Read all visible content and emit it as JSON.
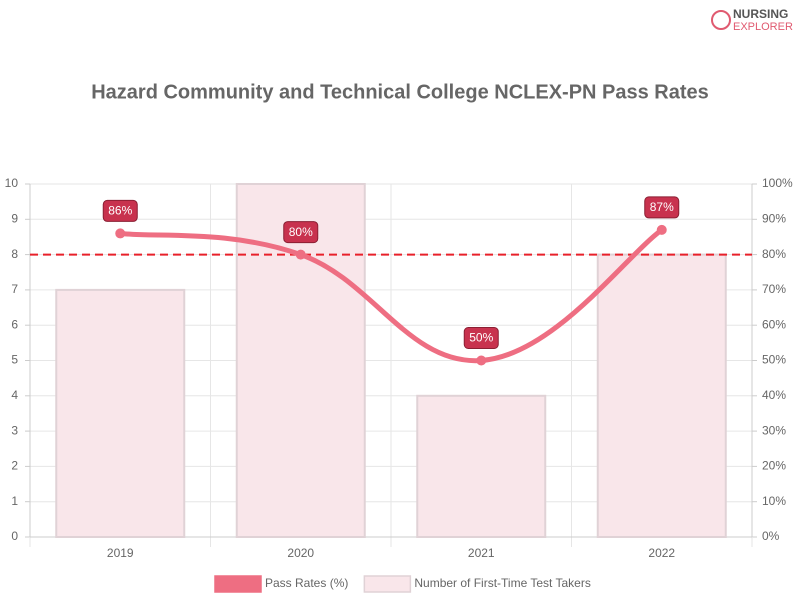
{
  "chart_data": {
    "type": "combo",
    "title": "Hazard Community and Technical College NCLEX-PN Pass Rates",
    "logo": [
      "NURSING",
      "EXPLORER"
    ],
    "categories": [
      "2019",
      "2020",
      "2021",
      "2022"
    ],
    "series": [
      {
        "name": "Pass Rates (%)",
        "type": "line",
        "axis": "y2",
        "color": "#ee6e82",
        "label_color": "#c8324e",
        "values": [
          86,
          80,
          50,
          87
        ],
        "value_labels": [
          "86%",
          "80%",
          "50%",
          "87%"
        ]
      },
      {
        "name": "Number of First-Time Test Takers",
        "type": "bar",
        "color": "#f9e6ea",
        "border_color": "#e0d2d6",
        "values": [
          7,
          10,
          4,
          8
        ]
      }
    ],
    "ylim": [
      0,
      10
    ],
    "yticks": [
      0,
      1,
      2,
      3,
      4,
      5,
      6,
      7,
      8,
      9,
      10
    ],
    "y2lim": [
      0,
      100
    ],
    "y2ticks": [
      {
        "value": 0,
        "label": "0%"
      },
      {
        "value": 10,
        "label": "10%"
      },
      {
        "value": 20,
        "label": "20%"
      },
      {
        "value": 30,
        "label": "30%"
      },
      {
        "value": 40,
        "label": "40%"
      },
      {
        "value": 50,
        "label": "50%"
      },
      {
        "value": 60,
        "label": "60%"
      },
      {
        "value": 70,
        "label": "70%"
      },
      {
        "value": 80,
        "label": "80%"
      },
      {
        "value": 90,
        "label": "90%"
      },
      {
        "value": 100,
        "label": "100%"
      }
    ],
    "reference_line": {
      "value": 80,
      "axis": "y2",
      "color": "#e8202a"
    },
    "grid": true,
    "legend": "bottom"
  }
}
